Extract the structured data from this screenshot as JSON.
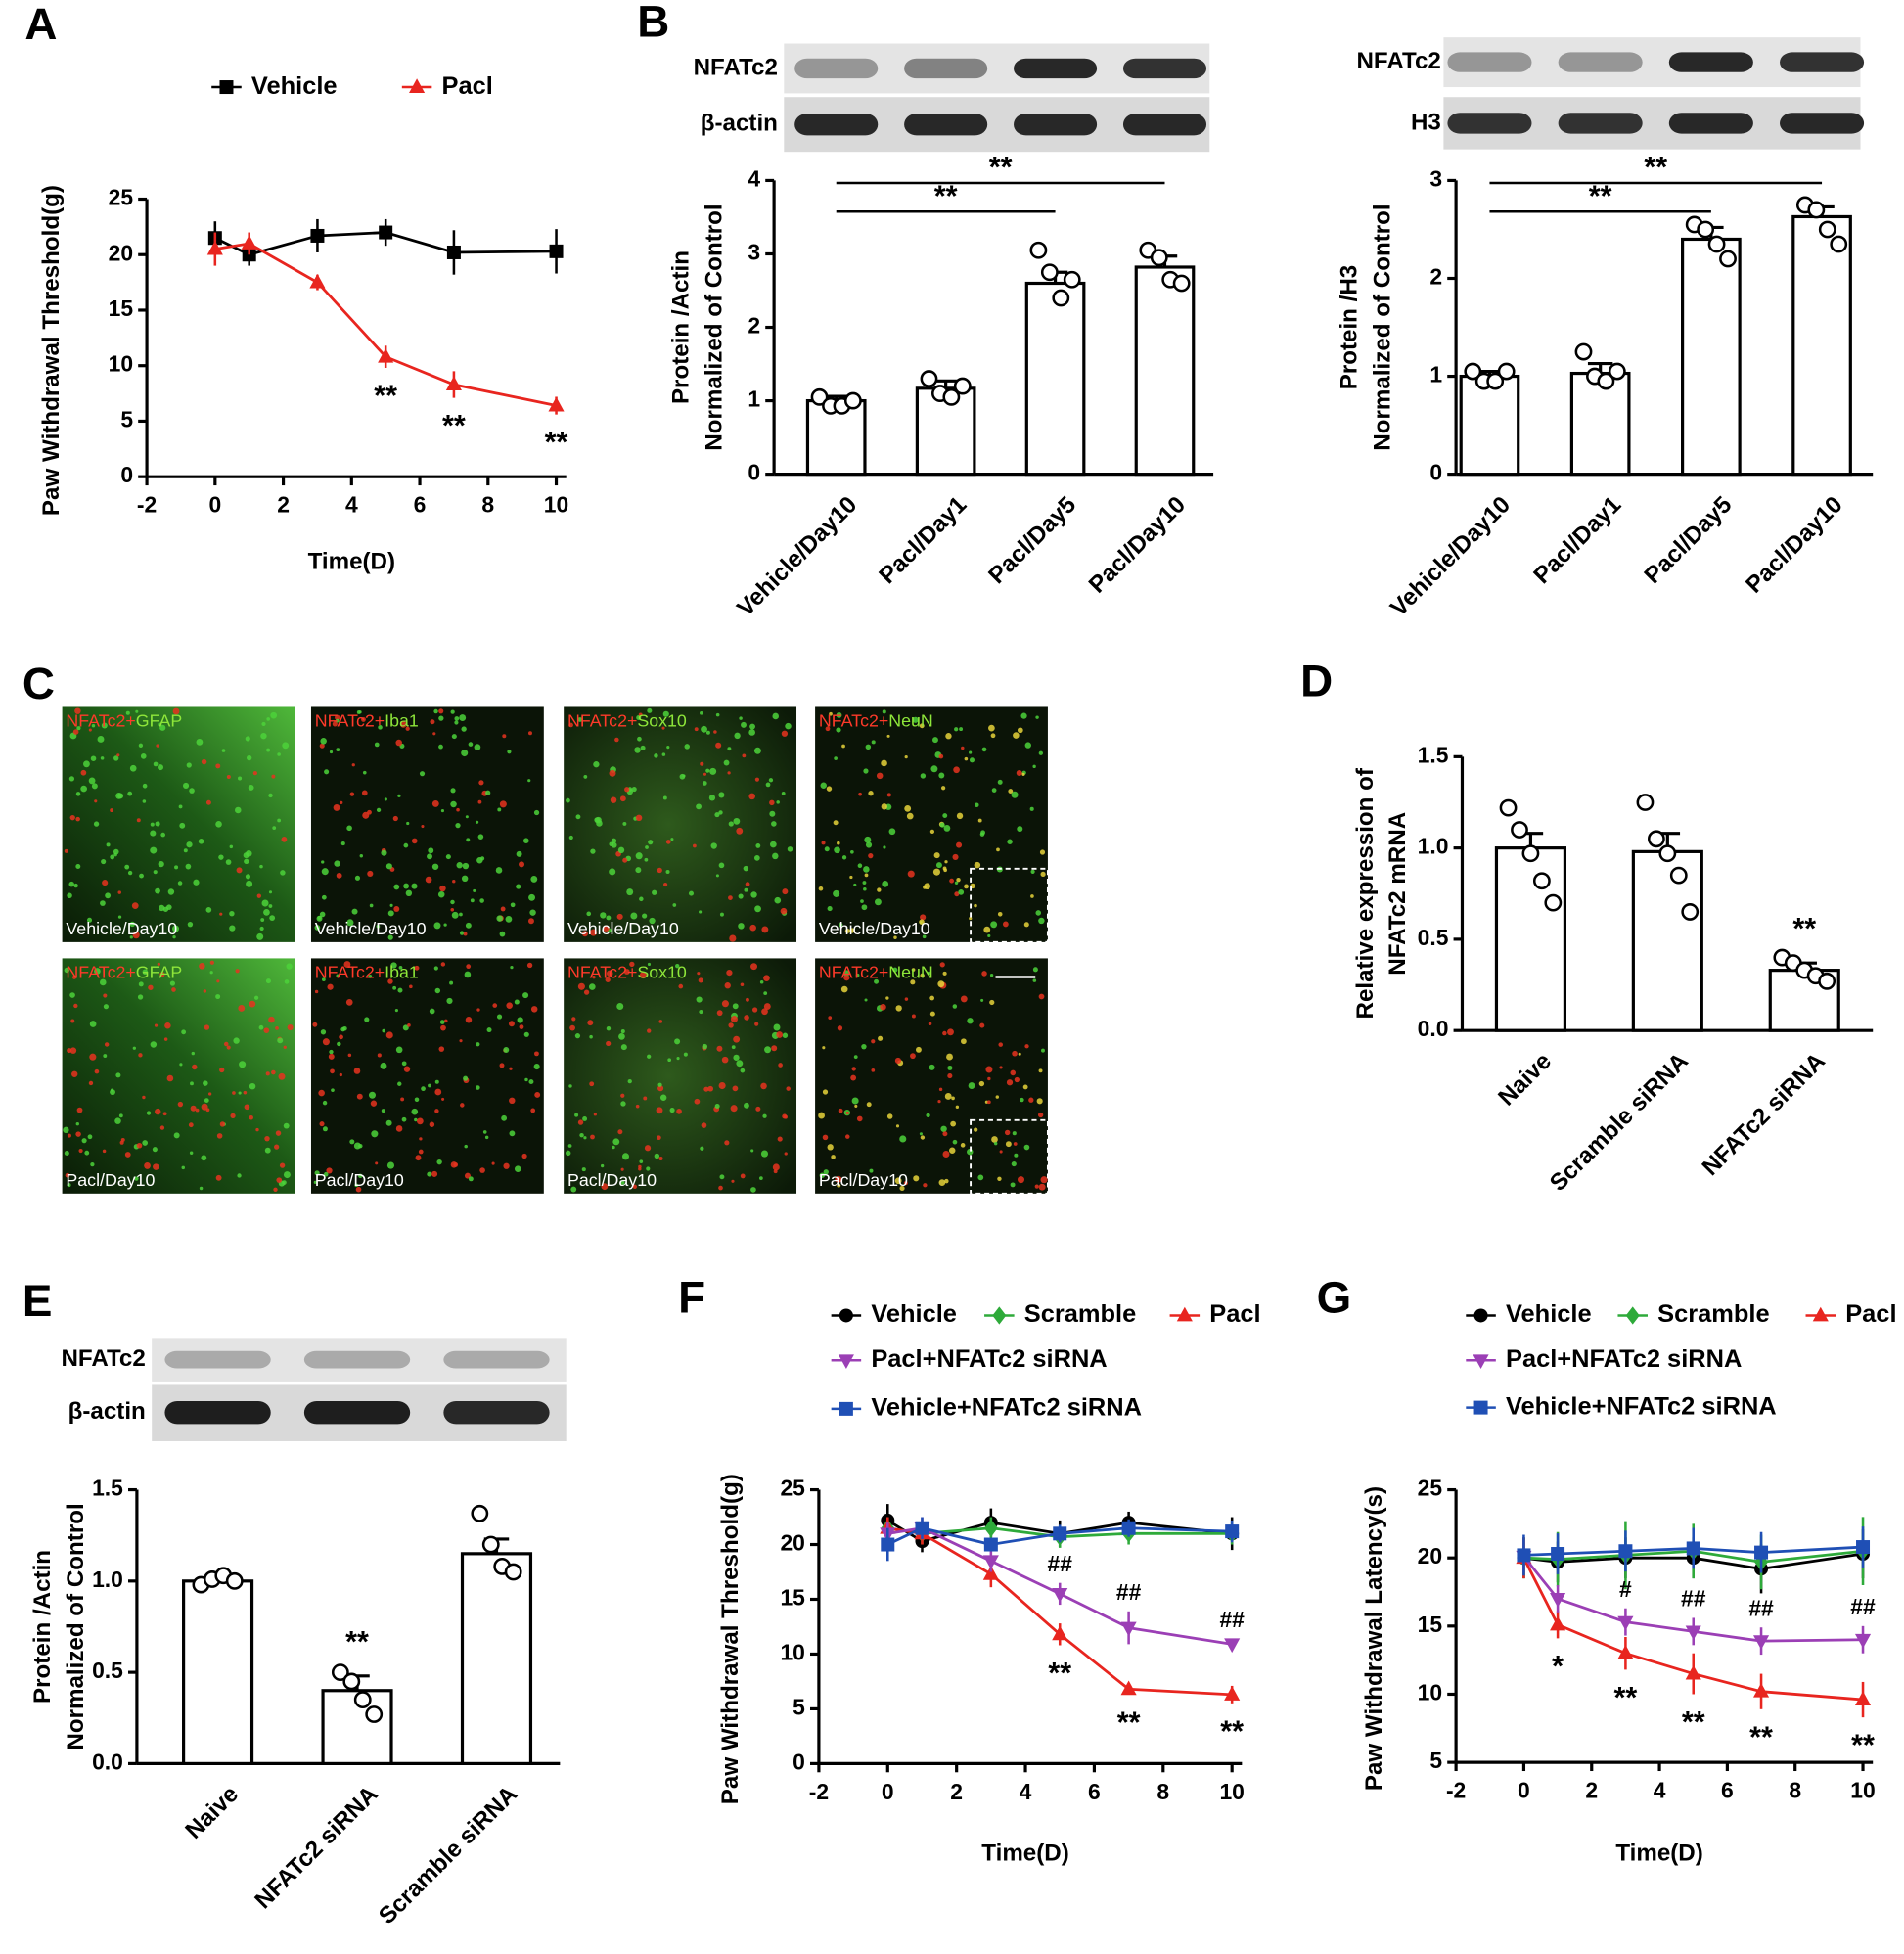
{
  "chart_data": [
    {
      "panel": "A",
      "type": "line",
      "x": [
        0,
        1,
        3,
        5,
        7,
        10
      ],
      "series": [
        {
          "name": "Vehicle",
          "color": "#000000",
          "marker": "square",
          "values": [
            21.5,
            20,
            21.7,
            22,
            20.2,
            20.3
          ],
          "errors": [
            1.5,
            1,
            1.5,
            1.2,
            2,
            2
          ]
        },
        {
          "name": "Pacl",
          "color": "#e8251f",
          "marker": "triangle",
          "values": [
            20.5,
            21,
            17.5,
            10.8,
            8.3,
            6.4
          ],
          "errors": [
            1.5,
            1,
            0.7,
            1,
            1.2,
            0.8
          ]
        }
      ],
      "xlim": [
        -2,
        10
      ],
      "xticks": [
        -2,
        0,
        2,
        4,
        6,
        8,
        10
      ],
      "ylim": [
        0,
        25
      ],
      "yticks": [
        0,
        5,
        10,
        15,
        20,
        25
      ],
      "xlabel": "Time(D)",
      "ylabel": "Paw Withdrawal Threshold(g)",
      "annotations": [
        {
          "text": "**",
          "x": 5,
          "series": "Pacl",
          "side": "below"
        },
        {
          "text": "**",
          "x": 7,
          "series": "Pacl",
          "side": "below"
        },
        {
          "text": "**",
          "x": 10,
          "series": "Pacl",
          "side": "below"
        }
      ]
    },
    {
      "panel": "B",
      "type": "bar",
      "blot_labels": [
        "NFATc2",
        "β-actin"
      ],
      "categories": [
        "Vehicle/Day10",
        "Pacl/Day1",
        "Pacl/Day5",
        "Pacl/Day10"
      ],
      "values": [
        1.0,
        1.17,
        2.6,
        2.82
      ],
      "errors": [
        0.06,
        0.1,
        0.15,
        0.15
      ],
      "points": [
        [
          1.05,
          0.93,
          0.93,
          1.0
        ],
        [
          1.3,
          1.1,
          1.05,
          1.2
        ],
        [
          3.05,
          2.75,
          2.4,
          2.65
        ],
        [
          3.05,
          2.95,
          2.65,
          2.6
        ]
      ],
      "color": "#ffffff",
      "ylim": [
        0,
        4
      ],
      "yticks": [
        0,
        1,
        2,
        3,
        4
      ],
      "ylabel": [
        "Protein /Actin",
        "Normalized of Control"
      ],
      "brackets": [
        {
          "text": "**",
          "from": "Vehicle/Day10",
          "to": "Pacl/Day5"
        },
        {
          "text": "**",
          "from": "Vehicle/Day10",
          "to": "Pacl/Day10"
        }
      ]
    },
    {
      "type": "bar",
      "blot_labels": [
        "NFATc2",
        "H3"
      ],
      "categories": [
        "Vehicle/Day10",
        "Pacl/Day1",
        "Pacl/Day5",
        "Pacl/Day10"
      ],
      "values": [
        1.0,
        1.03,
        2.4,
        2.63
      ],
      "errors": [
        0.05,
        0.1,
        0.12,
        0.1
      ],
      "points": [
        [
          1.05,
          0.95,
          0.95,
          1.05
        ],
        [
          1.25,
          1.0,
          0.95,
          1.05
        ],
        [
          2.55,
          2.5,
          2.35,
          2.2
        ],
        [
          2.75,
          2.7,
          2.5,
          2.35
        ]
      ],
      "color": "#ffffff",
      "ylim": [
        0,
        3
      ],
      "yticks": [
        0,
        1,
        2,
        3
      ],
      "ylabel": [
        "Protein /H3",
        "Normalized of Control"
      ],
      "brackets": [
        {
          "text": "**",
          "from": "Vehicle/Day10",
          "to": "Pacl/Day5"
        },
        {
          "text": "**",
          "from": "Vehicle/Day10",
          "to": "Pacl/Day10"
        }
      ]
    },
    {
      "panel": "D",
      "type": "bar",
      "categories": [
        "Naive",
        "Scramble siRNA",
        "NFATc2 siRNA"
      ],
      "values": [
        1.0,
        0.98,
        0.33
      ],
      "errors": [
        0.08,
        0.1,
        0.04
      ],
      "points": [
        [
          1.22,
          1.1,
          0.97,
          0.82,
          0.7
        ],
        [
          1.25,
          1.05,
          0.97,
          0.85,
          0.65
        ],
        [
          0.4,
          0.37,
          0.33,
          0.3,
          0.27
        ]
      ],
      "color": "#ffffff",
      "ylim": [
        0,
        1.5
      ],
      "yticks": [
        {
          "value": 0,
          "label": "0.0"
        },
        {
          "value": 0.5,
          "label": "0.5"
        },
        {
          "value": 1,
          "label": "1.0"
        },
        {
          "value": 1.5,
          "label": "1.5"
        }
      ],
      "ylabel": [
        "Relative expression of",
        "NFATc2  mRNA"
      ],
      "annotations": [
        {
          "text": "**",
          "category": "NFATc2 siRNA"
        }
      ]
    },
    {
      "panel": "E",
      "type": "bar",
      "blot_labels": [
        "NFATc2",
        "β-actin"
      ],
      "categories": [
        "Naive",
        "NFATc2 siRNA",
        "Scramble siRNA"
      ],
      "values": [
        1.0,
        0.4,
        1.15
      ],
      "errors": [
        0.03,
        0.08,
        0.08
      ],
      "points": [
        [
          0.98,
          1.01,
          1.03,
          1.0
        ],
        [
          0.5,
          0.45,
          0.35,
          0.27
        ],
        [
          1.37,
          1.2,
          1.08,
          1.05
        ]
      ],
      "color": "#ffffff",
      "ylim": [
        0,
        1.5
      ],
      "yticks": [
        {
          "value": 0,
          "label": "0.0"
        },
        {
          "value": 0.5,
          "label": "0.5"
        },
        {
          "value": 1,
          "label": "1.0"
        },
        {
          "value": 1.5,
          "label": "1.5"
        }
      ],
      "ylabel": [
        "Protein /Actin",
        "Normalized of Control"
      ],
      "annotations": [
        {
          "text": "**",
          "category": "NFATc2 siRNA"
        }
      ]
    },
    {
      "panel": "F",
      "type": "line",
      "x": [
        0,
        1,
        3,
        5,
        7,
        10
      ],
      "series": [
        {
          "name": "Vehicle",
          "color": "#000000",
          "marker": "circle",
          "values": [
            22.2,
            20.3,
            22,
            21,
            22,
            21
          ],
          "errors": [
            1.5,
            1,
            1.3,
            1.2,
            1,
            1.5
          ]
        },
        {
          "name": "Scramble",
          "color": "#2eaa3a",
          "marker": "diamond",
          "values": [
            21.5,
            21,
            21.5,
            20.7,
            21,
            21
          ],
          "errors": [
            1,
            1,
            1,
            1,
            1,
            1
          ]
        },
        {
          "name": "Pacl",
          "color": "#e8251f",
          "marker": "triangle",
          "values": [
            21.5,
            21,
            17.3,
            11.8,
            6.8,
            6.3
          ],
          "errors": [
            1,
            1,
            1.2,
            1,
            0.5,
            0.8
          ]
        },
        {
          "name": "Pacl+NFATc2 siRNA",
          "color": "#9b3fb5",
          "marker": "triangle-down",
          "values": [
            21,
            21.5,
            18.5,
            15.5,
            12.4,
            10.9
          ],
          "errors": [
            1,
            1,
            1,
            1,
            1.5,
            0.5
          ]
        },
        {
          "name": "Vehicle+NFATc2 siRNA",
          "color": "#1f4fb5",
          "marker": "square",
          "values": [
            20,
            21.5,
            20,
            21,
            21.5,
            21.2
          ],
          "errors": [
            1.5,
            1,
            0.5,
            0.8,
            0.8,
            1
          ]
        }
      ],
      "xlim": [
        -2,
        10
      ],
      "xticks": [
        -2,
        0,
        2,
        4,
        6,
        8,
        10
      ],
      "ylim": [
        0,
        25
      ],
      "yticks": [
        0,
        5,
        10,
        15,
        20,
        25
      ],
      "xlabel": "Time(D)",
      "ylabel": "Paw Withdrawal Threshold(g)",
      "annotations": [
        {
          "text": "##",
          "x": 5,
          "series": "Pacl+NFATc2 siRNA",
          "side": "above"
        },
        {
          "text": "##",
          "x": 7,
          "series": "Pacl+NFATc2 siRNA",
          "side": "above"
        },
        {
          "text": "##",
          "x": 10,
          "series": "Pacl+NFATc2 siRNA",
          "side": "above"
        },
        {
          "text": "**",
          "x": 5,
          "series": "Pacl",
          "side": "below"
        },
        {
          "text": "**",
          "x": 7,
          "series": "Pacl",
          "side": "below"
        },
        {
          "text": "**",
          "x": 10,
          "series": "Pacl",
          "side": "below"
        }
      ]
    },
    {
      "panel": "G",
      "type": "line",
      "x": [
        0,
        1,
        3,
        5,
        7,
        10
      ],
      "series": [
        {
          "name": "Vehicle",
          "color": "#000000",
          "marker": "circle",
          "values": [
            20,
            19.7,
            20,
            20,
            19.2,
            20.3
          ],
          "errors": [
            1.5,
            1.5,
            1.5,
            1.5,
            1.8,
            1.8
          ]
        },
        {
          "name": "Scramble",
          "color": "#2eaa3a",
          "marker": "diamond",
          "values": [
            20,
            19.9,
            20.2,
            20.5,
            19.7,
            20.5
          ],
          "errors": [
            1.5,
            2,
            2.5,
            2,
            2,
            2.5
          ]
        },
        {
          "name": "Pacl",
          "color": "#e8251f",
          "marker": "triangle",
          "values": [
            20,
            15.1,
            13,
            11.5,
            10.2,
            9.6
          ],
          "errors": [
            1.5,
            1,
            1.2,
            1.5,
            1.3,
            1.3
          ]
        },
        {
          "name": "Pacl+NFATc2 siRNA",
          "color": "#9b3fb5",
          "marker": "triangle-down",
          "values": [
            20.1,
            17,
            15.3,
            14.6,
            13.9,
            14
          ],
          "errors": [
            1.2,
            1,
            1,
            1,
            1,
            1
          ]
        },
        {
          "name": "Vehicle+NFATc2 siRNA",
          "color": "#1f4fb5",
          "marker": "square",
          "values": [
            20.2,
            20.3,
            20.5,
            20.7,
            20.4,
            20.8
          ],
          "errors": [
            1.5,
            1.5,
            1.5,
            1.5,
            1.5,
            1.5
          ]
        }
      ],
      "xlim": [
        -2,
        10
      ],
      "xticks": [
        -2,
        0,
        2,
        4,
        6,
        8,
        10
      ],
      "ylim": [
        5,
        25
      ],
      "yticks": [
        5,
        10,
        15,
        20,
        25
      ],
      "xlabel": "Time(D)",
      "ylabel": "Paw Withdrawal Latency(s)",
      "annotations": [
        {
          "text": "#",
          "x": 3,
          "series": "Pacl+NFATc2 siRNA",
          "side": "above"
        },
        {
          "text": "##",
          "x": 5,
          "series": "Pacl+NFATc2 siRNA",
          "side": "above"
        },
        {
          "text": "##",
          "x": 7,
          "series": "Pacl+NFATc2 siRNA",
          "side": "above"
        },
        {
          "text": "##",
          "x": 10,
          "series": "Pacl+NFATc2 siRNA",
          "side": "above"
        },
        {
          "text": "*",
          "x": 1,
          "series": "Pacl",
          "side": "below"
        },
        {
          "text": "**",
          "x": 3,
          "series": "Pacl",
          "side": "below"
        },
        {
          "text": "**",
          "x": 5,
          "series": "Pacl",
          "side": "below"
        },
        {
          "text": "**",
          "x": 7,
          "series": "Pacl",
          "side": "below"
        },
        {
          "text": "**",
          "x": 10,
          "series": "Pacl",
          "side": "below"
        }
      ]
    }
  ],
  "micrographs": {
    "panel": "C",
    "images": [
      {
        "stain": [
          "NFATc2+",
          "GFAP"
        ],
        "condition": "Vehicle/Day10"
      },
      {
        "stain": [
          "NFATc2+",
          "Iba1"
        ],
        "condition": "Vehicle/Day10"
      },
      {
        "stain": [
          "NFATc2+",
          "Sox10"
        ],
        "condition": "Vehicle/Day10"
      },
      {
        "stain": [
          "NFATc2+",
          "NeuN"
        ],
        "condition": "Vehicle/Day10"
      },
      {
        "stain": [
          "NFATc2+",
          "GFAP"
        ],
        "condition": "Pacl/Day10"
      },
      {
        "stain": [
          "NFATc2+",
          "Iba1"
        ],
        "condition": "Pacl/Day10"
      },
      {
        "stain": [
          "NFATc2+",
          "Sox10"
        ],
        "condition": "Pacl/Day10"
      },
      {
        "stain": [
          "NFATc2+",
          "NeuN"
        ],
        "condition": "Pacl/Day10"
      }
    ]
  }
}
